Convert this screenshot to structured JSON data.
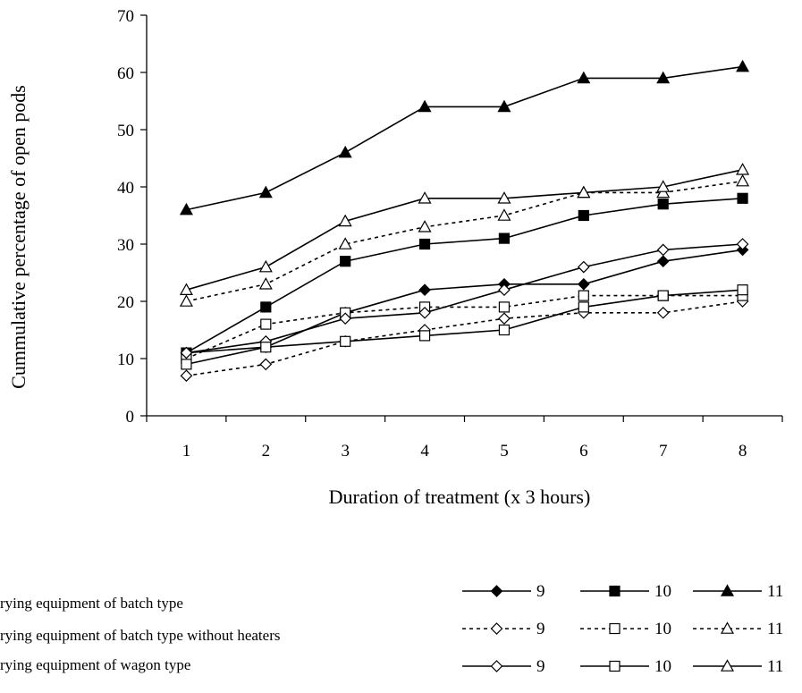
{
  "chart_data": {
    "type": "line",
    "ylabel": "Cummulative percentage of open pods",
    "xlabel": "Duration of treatment (x 3 hours)",
    "x": [
      1,
      2,
      3,
      4,
      5,
      6,
      7,
      8
    ],
    "xlim": [
      0.5,
      8.5
    ],
    "ylim": [
      0,
      70
    ],
    "yticks": [
      0,
      10,
      20,
      30,
      40,
      50,
      60,
      70
    ],
    "grid": false,
    "legend_position": "bottom",
    "series": [
      {
        "name": "9",
        "group": 0,
        "marker": "diamond",
        "fill": "filled",
        "dash": "solid",
        "values": [
          11,
          12,
          18,
          22,
          23,
          23,
          27,
          29
        ]
      },
      {
        "name": "10",
        "group": 0,
        "marker": "square",
        "fill": "filled",
        "dash": "solid",
        "values": [
          11,
          19,
          27,
          30,
          31,
          35,
          37,
          38
        ]
      },
      {
        "name": "11",
        "group": 0,
        "marker": "triangle",
        "fill": "filled",
        "dash": "solid",
        "values": [
          36,
          39,
          46,
          54,
          54,
          59,
          59,
          61
        ]
      },
      {
        "name": "9",
        "group": 1,
        "marker": "diamond",
        "fill": "open",
        "dash": "dotted",
        "values": [
          7,
          9,
          13,
          15,
          17,
          18,
          18,
          20
        ]
      },
      {
        "name": "10",
        "group": 1,
        "marker": "square",
        "fill": "open",
        "dash": "dotted",
        "values": [
          10,
          16,
          18,
          19,
          19,
          21,
          21,
          21
        ]
      },
      {
        "name": "11",
        "group": 1,
        "marker": "triangle",
        "fill": "open",
        "dash": "dotted",
        "values": [
          20,
          23,
          30,
          33,
          35,
          39,
          39,
          41
        ]
      },
      {
        "name": "9",
        "group": 2,
        "marker": "diamond",
        "fill": "open",
        "dash": "solid",
        "values": [
          11,
          13,
          17,
          18,
          22,
          26,
          29,
          30
        ]
      },
      {
        "name": "10",
        "group": 2,
        "marker": "square",
        "fill": "open",
        "dash": "solid",
        "values": [
          9,
          12,
          13,
          14,
          15,
          19,
          21,
          22
        ]
      },
      {
        "name": "11",
        "group": 2,
        "marker": "triangle",
        "fill": "open",
        "dash": "solid",
        "values": [
          22,
          26,
          34,
          38,
          38,
          39,
          40,
          43
        ]
      }
    ],
    "legend_groups": [
      "rying equipment of batch type",
      "rying equipment of batch type without heaters",
      "rying equipment of wagon type"
    ]
  }
}
